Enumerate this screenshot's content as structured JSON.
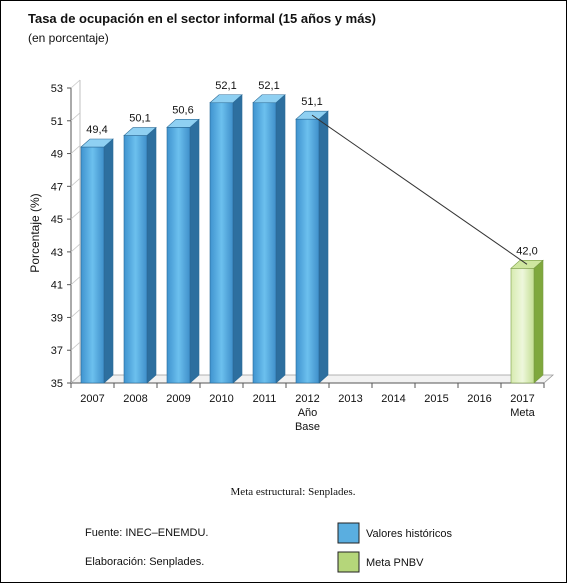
{
  "chart_data": {
    "type": "bar",
    "title": "Tasa de ocupación  en el sector informal (15 años y más)",
    "subtitle": "(en porcentaje)",
    "ylabel": "Porcentaje (%)",
    "ylim": [
      35,
      53
    ],
    "yticks": [
      35,
      37,
      39,
      41,
      43,
      45,
      47,
      49,
      51,
      53
    ],
    "categories": [
      "2007",
      "2008",
      "2009",
      "2010",
      "2011",
      "2012",
      "2013",
      "2014",
      "2015",
      "2016",
      "2017"
    ],
    "category_sublabels": {
      "2012": [
        "Año",
        "Base"
      ],
      "2017": [
        "Meta"
      ]
    },
    "series": [
      {
        "name": "Valores históricos",
        "color": "#5aaee0",
        "points": [
          {
            "x": "2007",
            "y": 49.4,
            "label": "49,4"
          },
          {
            "x": "2008",
            "y": 50.1,
            "label": "50,1"
          },
          {
            "x": "2009",
            "y": 50.6,
            "label": "50,6"
          },
          {
            "x": "2010",
            "y": 52.1,
            "label": "52,1"
          },
          {
            "x": "2011",
            "y": 52.1,
            "label": "52,1"
          },
          {
            "x": "2012",
            "y": 51.1,
            "label": "51,1"
          }
        ]
      },
      {
        "name": "Meta PNBV",
        "color": "#b5d67a",
        "points": [
          {
            "x": "2017",
            "y": 42.0,
            "label": "42,0"
          }
        ]
      }
    ],
    "connector": {
      "from": "2012",
      "to": "2017"
    },
    "grid": false,
    "legend_position": "bottom-right"
  },
  "notes": {
    "meta_structural": "Meta estructural: Senplades.",
    "source": "Fuente: INEC–ENEMDU.",
    "elaboration": "Elaboración: Senplades."
  }
}
